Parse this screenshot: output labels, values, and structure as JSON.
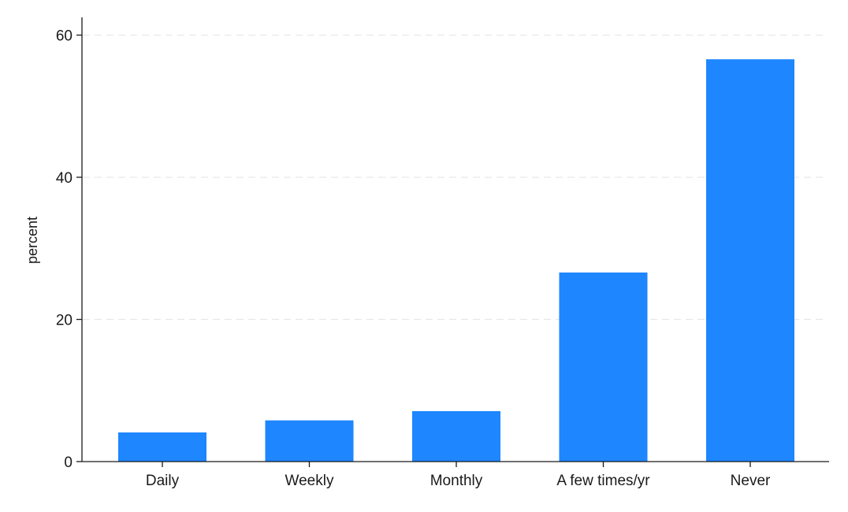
{
  "chart_data": {
    "type": "bar",
    "categories": [
      "Daily",
      "Weekly",
      "Monthly",
      "A few times/yr",
      "Never"
    ],
    "values": [
      4.1,
      5.8,
      7.1,
      26.6,
      56.6
    ],
    "title": "",
    "xlabel": "",
    "ylabel": "percent",
    "ylim": [
      0,
      62.5
    ],
    "yticks": [
      0,
      20,
      40,
      60
    ],
    "grid": true,
    "bar_color": "#1e86ff",
    "axis_color": "#1a1a1a",
    "grid_color": "#e6e6e6"
  }
}
